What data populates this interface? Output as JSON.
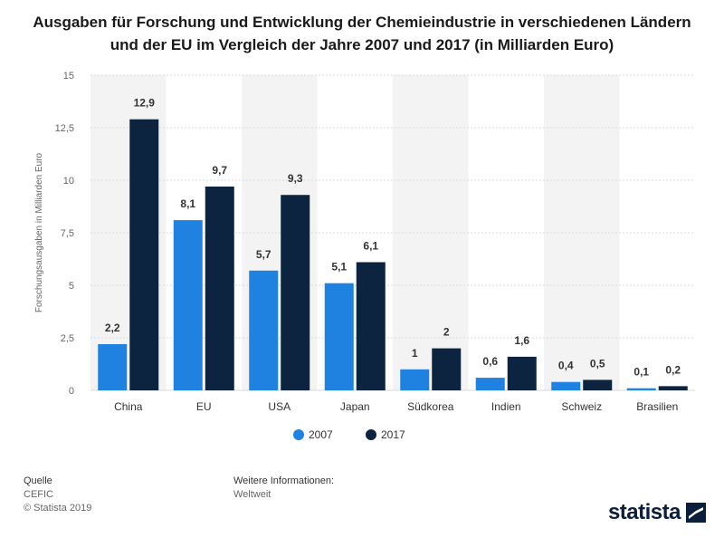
{
  "title": "Ausgaben für Forschung und Entwicklung der Chemieindustrie in verschiedenen Ländern und der EU im Vergleich der Jahre 2007 und 2017 (in Milliarden Euro)",
  "chart_data": {
    "type": "bar",
    "title": "Ausgaben für Forschung und Entwicklung der Chemieindustrie in verschiedenen Ländern und der EU im Vergleich der Jahre 2007 und 2017 (in Milliarden Euro)",
    "xlabel": "",
    "ylabel": "Forschungsausgaben in Milliarden Euro",
    "ylim": [
      0,
      15
    ],
    "yticks": [
      0,
      2.5,
      5,
      7.5,
      10,
      12.5,
      15
    ],
    "ytick_labels": [
      "0",
      "2,5",
      "5",
      "7,5",
      "10",
      "12,5",
      "15"
    ],
    "categories": [
      "China",
      "EU",
      "USA",
      "Japan",
      "Südkorea",
      "Indien",
      "Schweiz",
      "Brasilien"
    ],
    "series": [
      {
        "name": "2007",
        "color": "#1f82e0",
        "values": [
          2.2,
          8.1,
          5.7,
          5.1,
          1.0,
          0.6,
          0.4,
          0.1
        ],
        "labels": [
          "2,2",
          "8,1",
          "5,7",
          "5,1",
          "1",
          "0,6",
          "0,4",
          "0,1"
        ]
      },
      {
        "name": "2017",
        "color": "#0d2440",
        "values": [
          12.9,
          9.7,
          9.3,
          6.1,
          2.0,
          1.6,
          0.5,
          0.2
        ],
        "labels": [
          "12,9",
          "9,7",
          "9,3",
          "6,1",
          "2",
          "1,6",
          "0,5",
          "0,2"
        ]
      }
    ],
    "grid": true,
    "legend_position": "bottom-center"
  },
  "footer": {
    "source_label": "Quelle",
    "source_value": "CEFIC",
    "copyright": "© Statista 2019",
    "info_label": "Weitere Informationen:",
    "info_value": "Weltweit"
  },
  "logo": {
    "text": "statista",
    "icon": "statista-logo-icon",
    "color": "#0b1e3c"
  }
}
